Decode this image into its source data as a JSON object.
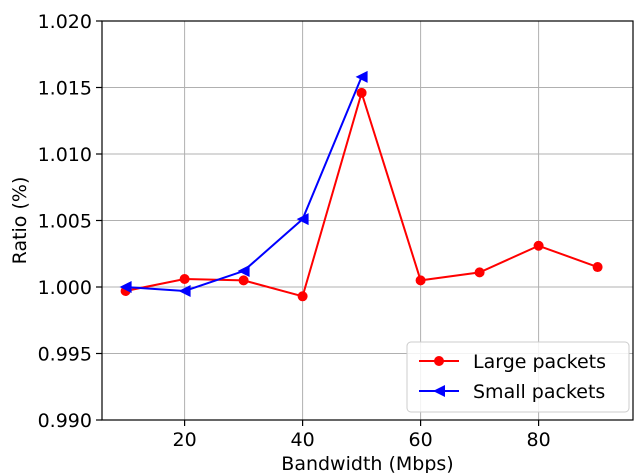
{
  "chart_data": {
    "type": "line",
    "title": "",
    "xlabel": "Bandwidth (Mbps)",
    "ylabel": "Ratio (%)",
    "xlim": [
      6,
      96
    ],
    "ylim": [
      0.99,
      1.02
    ],
    "xticks": [
      20,
      40,
      60,
      80
    ],
    "xtick_labels": [
      "20",
      "40",
      "60",
      "80"
    ],
    "yticks": [
      0.99,
      0.995,
      1.0,
      1.005,
      1.01,
      1.015,
      1.02
    ],
    "ytick_labels": [
      "0.990",
      "0.995",
      "1.000",
      "1.005",
      "1.010",
      "1.015",
      "1.020"
    ],
    "grid": true,
    "legend_position": "bottom-right",
    "series": [
      {
        "name": "Large packets",
        "color": "#ff0000",
        "marker": "circle",
        "x": [
          10,
          20,
          30,
          40,
          50,
          60,
          70,
          80,
          90
        ],
        "y": [
          0.9997,
          1.0006,
          1.0005,
          0.9993,
          1.0146,
          1.0005,
          1.0011,
          1.0031,
          1.0015
        ]
      },
      {
        "name": "Small packets",
        "color": "#0000ff",
        "marker": "triangle-left",
        "x": [
          10,
          20,
          30,
          40,
          50
        ],
        "y": [
          1.0,
          0.9997,
          1.0012,
          1.0051,
          1.0158
        ]
      }
    ]
  }
}
